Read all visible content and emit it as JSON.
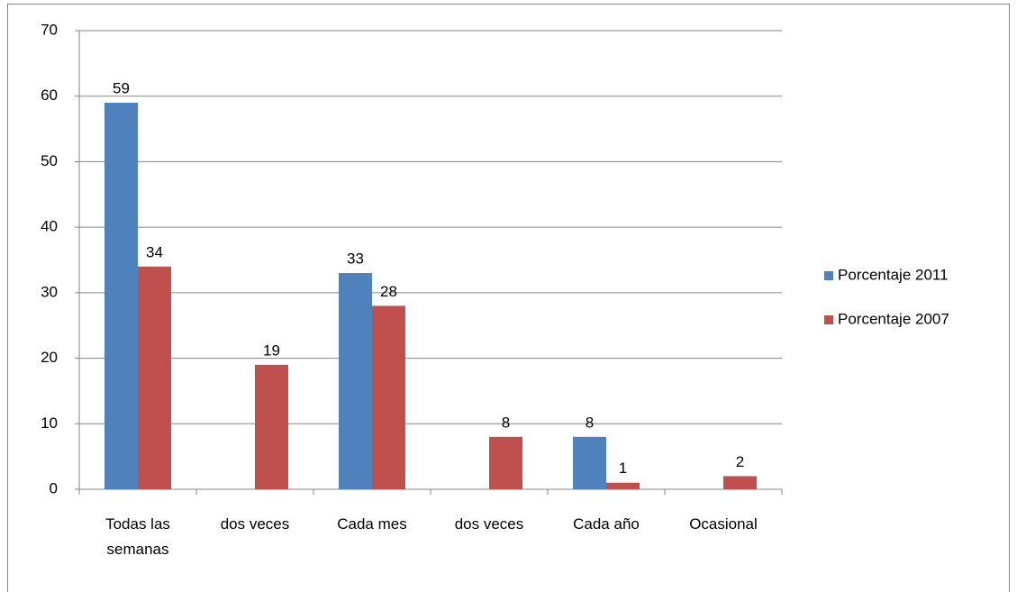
{
  "chart_data": {
    "type": "bar",
    "categories": [
      "Todas las semanas",
      "dos veces",
      "Cada mes",
      "dos veces",
      "Cada año",
      "Ocasional"
    ],
    "series": [
      {
        "name": "Porcentaje 2011",
        "color": "#4f81bd",
        "values": [
          59,
          null,
          33,
          null,
          8,
          null
        ]
      },
      {
        "name": "Porcentaje 2007",
        "color": "#c0504d",
        "values": [
          34,
          19,
          28,
          8,
          1,
          2
        ]
      }
    ],
    "ylim": [
      0,
      70
    ],
    "yticks": [
      0,
      10,
      20,
      30,
      40,
      50,
      60,
      70
    ],
    "grid": true,
    "legend": "right"
  }
}
